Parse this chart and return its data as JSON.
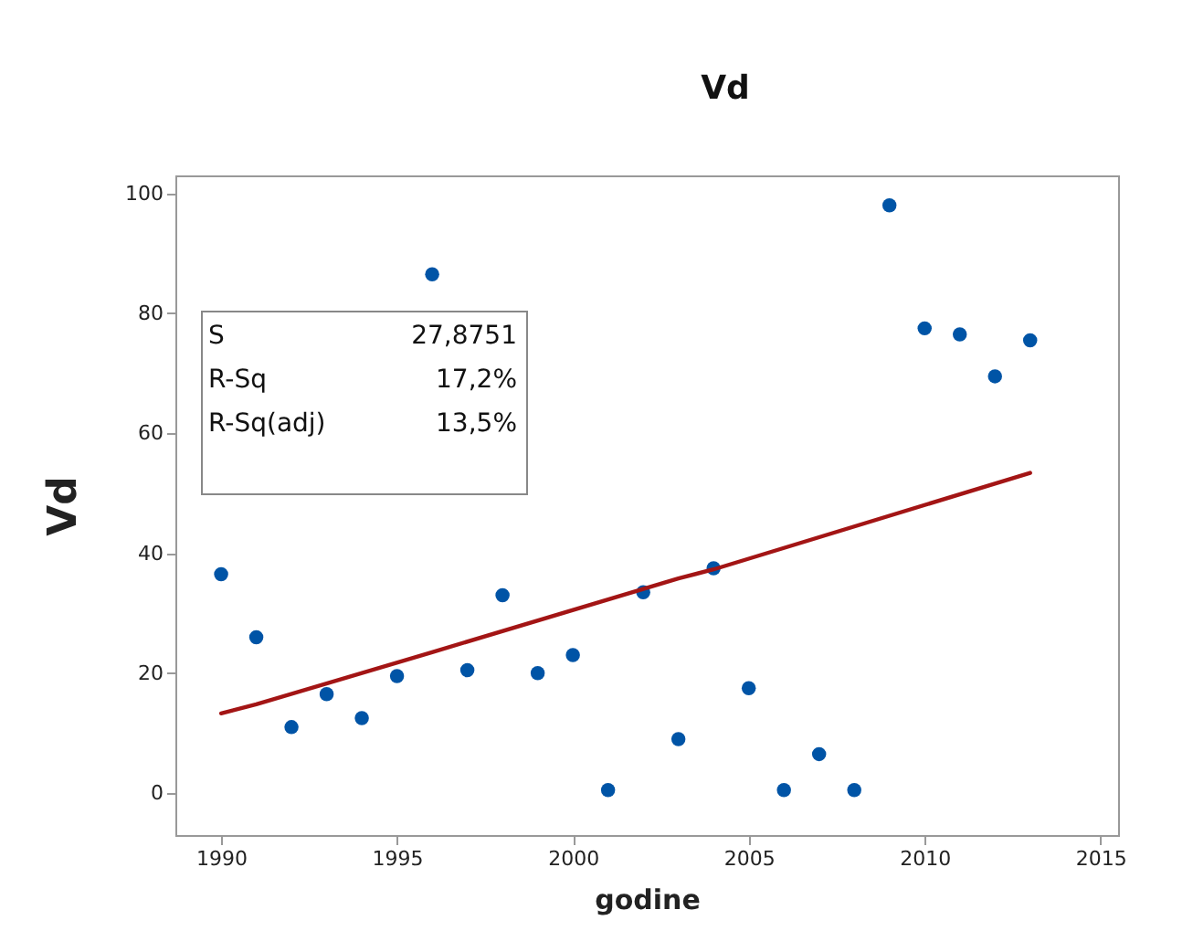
{
  "chart_data": {
    "type": "scatter",
    "title": "Vd",
    "xlabel": "godine",
    "ylabel": "Vd",
    "x": [
      1990,
      1991,
      1992,
      1993,
      1994,
      1995,
      1996,
      1997,
      1998,
      1999,
      2000,
      2001,
      2002,
      2003,
      2004,
      2005,
      2006,
      2007,
      2008,
      2009,
      2010,
      2011,
      2012,
      2013
    ],
    "series": [
      {
        "marker": "circle",
        "color": "#0054a6",
        "values": [
          36.5,
          26,
          11,
          16.5,
          12.5,
          19.5,
          86.5,
          20.5,
          33,
          20,
          23,
          0.5,
          33.5,
          9,
          37.5,
          17.5,
          0.5,
          6.5,
          0.5,
          98,
          77.5,
          76.5,
          69.5,
          75.5
        ]
      },
      {
        "type": "line",
        "color": "#a31515",
        "x": [
          1990,
          1991,
          1996,
          2003,
          2004,
          2013
        ],
        "values": [
          13.3,
          14.8,
          23.5,
          35.8,
          37.3,
          53.4
        ]
      }
    ],
    "annotations": [
      "S",
      "27,8751",
      "R-Sq",
      "17,2%",
      "R-Sq(adj)",
      "13,5%"
    ],
    "xlim": [
      1988.7,
      2015.5
    ],
    "xticks": [
      1990,
      1995,
      2000,
      2005,
      2010,
      2015
    ],
    "ylim": [
      -7,
      103
    ],
    "yticks": [
      0,
      20,
      40,
      60,
      80,
      100
    ],
    "grid": false
  }
}
